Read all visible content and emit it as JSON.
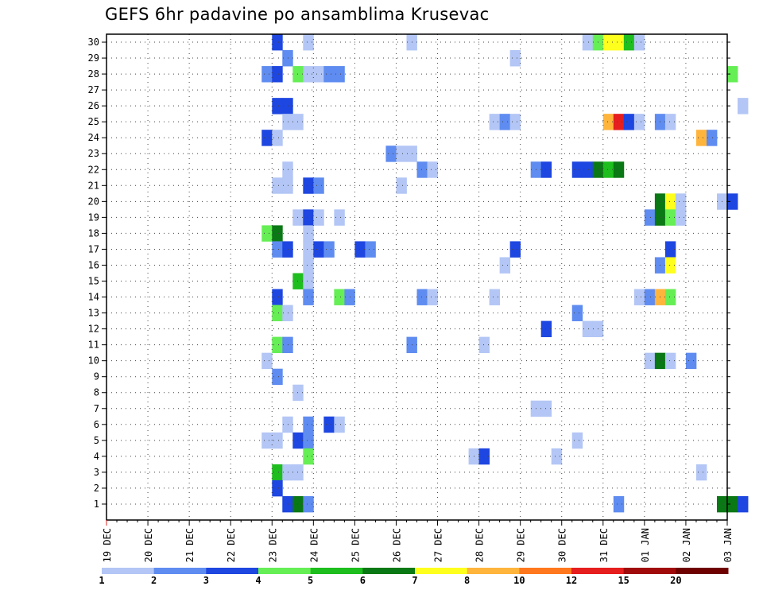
{
  "chart_data": {
    "type": "heatmap",
    "title": "GEFS 6hr padavine po ansamblima Krusevac",
    "xlabel": "",
    "ylabel": "",
    "x_tick_labels": [
      "19 DEC",
      "20 DEC",
      "21 DEC",
      "22 DEC",
      "23 DEC",
      "24 DEC",
      "25 DEC",
      "26 DEC",
      "27 DEC",
      "28 DEC",
      "29 DEC",
      "30 DEC",
      "31 DEC",
      "01 JAN",
      "02 JAN",
      "03 JAN"
    ],
    "y_tick_labels": [
      "1",
      "2",
      "3",
      "4",
      "5",
      "6",
      "7",
      "8",
      "9",
      "10",
      "11",
      "12",
      "13",
      "14",
      "15",
      "16",
      "17",
      "18",
      "19",
      "20",
      "21",
      "22",
      "23",
      "24",
      "25",
      "26",
      "27",
      "28",
      "29",
      "30"
    ],
    "time_steps_per_day": 4,
    "grid": true,
    "legend": {
      "placement": "bottom",
      "labels": [
        "1",
        "2",
        "3",
        "4",
        "5",
        "6",
        "7",
        "8",
        "10",
        "12",
        "15",
        "20"
      ],
      "colors": [
        "#b3c6f5",
        "#5f8cf0",
        "#1e46e0",
        "#66ee55",
        "#1ebe1e",
        "#0a7814",
        "#ffff1e",
        "#ffb43c",
        "#ff781e",
        "#e61e1e",
        "#a00a0a",
        "#6e0000"
      ]
    },
    "cells": [
      {
        "step": 16,
        "member": 30,
        "level": 2
      },
      {
        "step": 19,
        "member": 30,
        "level": 0
      },
      {
        "step": 29,
        "member": 30,
        "level": 0
      },
      {
        "step": 46,
        "member": 30,
        "level": 0
      },
      {
        "step": 47,
        "member": 30,
        "level": 3
      },
      {
        "step": 48,
        "member": 30,
        "level": 6
      },
      {
        "step": 49,
        "member": 30,
        "level": 6
      },
      {
        "step": 50,
        "member": 30,
        "level": 4
      },
      {
        "step": 51,
        "member": 30,
        "level": 0
      },
      {
        "step": 17,
        "member": 29,
        "level": 1
      },
      {
        "step": 39,
        "member": 29,
        "level": 0
      },
      {
        "step": 15,
        "member": 28,
        "level": 1
      },
      {
        "step": 16,
        "member": 28,
        "level": 2
      },
      {
        "step": 18,
        "member": 28,
        "level": 3
      },
      {
        "step": 19,
        "member": 28,
        "level": 0
      },
      {
        "step": 20,
        "member": 28,
        "level": 0
      },
      {
        "step": 21,
        "member": 28,
        "level": 1
      },
      {
        "step": 22,
        "member": 28,
        "level": 1
      },
      {
        "step": 60,
        "member": 28,
        "level": 3
      },
      {
        "step": 16,
        "member": 26,
        "level": 2
      },
      {
        "step": 17,
        "member": 26,
        "level": 2
      },
      {
        "step": 61,
        "member": 26,
        "level": 0
      },
      {
        "step": 17,
        "member": 25,
        "level": 0
      },
      {
        "step": 18,
        "member": 25,
        "level": 0
      },
      {
        "step": 37,
        "member": 25,
        "level": 0
      },
      {
        "step": 38,
        "member": 25,
        "level": 1
      },
      {
        "step": 39,
        "member": 25,
        "level": 0
      },
      {
        "step": 48,
        "member": 25,
        "level": 7
      },
      {
        "step": 49,
        "member": 25,
        "level": 9
      },
      {
        "step": 50,
        "member": 25,
        "level": 2
      },
      {
        "step": 51,
        "member": 25,
        "level": 0
      },
      {
        "step": 53,
        "member": 25,
        "level": 1
      },
      {
        "step": 54,
        "member": 25,
        "level": 0
      },
      {
        "step": 15,
        "member": 24,
        "level": 2
      },
      {
        "step": 16,
        "member": 24,
        "level": 0
      },
      {
        "step": 57,
        "member": 24,
        "level": 7
      },
      {
        "step": 58,
        "member": 24,
        "level": 1
      },
      {
        "step": 27,
        "member": 23,
        "level": 1
      },
      {
        "step": 28,
        "member": 23,
        "level": 0
      },
      {
        "step": 29,
        "member": 23,
        "level": 0
      },
      {
        "step": 17,
        "member": 22,
        "level": 0
      },
      {
        "step": 30,
        "member": 22,
        "level": 1
      },
      {
        "step": 31,
        "member": 22,
        "level": 0
      },
      {
        "step": 41,
        "member": 22,
        "level": 1
      },
      {
        "step": 42,
        "member": 22,
        "level": 2
      },
      {
        "step": 45,
        "member": 22,
        "level": 2
      },
      {
        "step": 46,
        "member": 22,
        "level": 2
      },
      {
        "step": 47,
        "member": 22,
        "level": 5
      },
      {
        "step": 48,
        "member": 22,
        "level": 4
      },
      {
        "step": 49,
        "member": 22,
        "level": 5
      },
      {
        "step": 16,
        "member": 21,
        "level": 0
      },
      {
        "step": 17,
        "member": 21,
        "level": 0
      },
      {
        "step": 19,
        "member": 21,
        "level": 2
      },
      {
        "step": 20,
        "member": 21,
        "level": 1
      },
      {
        "step": 28,
        "member": 21,
        "level": 0
      },
      {
        "step": 53,
        "member": 20,
        "level": 5
      },
      {
        "step": 54,
        "member": 20,
        "level": 6
      },
      {
        "step": 55,
        "member": 20,
        "level": 0
      },
      {
        "step": 59,
        "member": 20,
        "level": 0
      },
      {
        "step": 60,
        "member": 20,
        "level": 2
      },
      {
        "step": 18,
        "member": 19,
        "level": 0
      },
      {
        "step": 19,
        "member": 19,
        "level": 2
      },
      {
        "step": 20,
        "member": 19,
        "level": 0
      },
      {
        "step": 22,
        "member": 19,
        "level": 0
      },
      {
        "step": 52,
        "member": 19,
        "level": 1
      },
      {
        "step": 53,
        "member": 19,
        "level": 5
      },
      {
        "step": 54,
        "member": 19,
        "level": 3
      },
      {
        "step": 55,
        "member": 19,
        "level": 0
      },
      {
        "step": 15,
        "member": 18,
        "level": 3
      },
      {
        "step": 16,
        "member": 18,
        "level": 5
      },
      {
        "step": 19,
        "member": 18,
        "level": 0
      },
      {
        "step": 16,
        "member": 17,
        "level": 1
      },
      {
        "step": 17,
        "member": 17,
        "level": 2
      },
      {
        "step": 19,
        "member": 17,
        "level": 0
      },
      {
        "step": 20,
        "member": 17,
        "level": 2
      },
      {
        "step": 21,
        "member": 17,
        "level": 1
      },
      {
        "step": 24,
        "member": 17,
        "level": 2
      },
      {
        "step": 25,
        "member": 17,
        "level": 1
      },
      {
        "step": 39,
        "member": 17,
        "level": 2
      },
      {
        "step": 54,
        "member": 17,
        "level": 2
      },
      {
        "step": 19,
        "member": 16,
        "level": 0
      },
      {
        "step": 38,
        "member": 16,
        "level": 0
      },
      {
        "step": 53,
        "member": 16,
        "level": 1
      },
      {
        "step": 54,
        "member": 16,
        "level": 6
      },
      {
        "step": 18,
        "member": 15,
        "level": 4
      },
      {
        "step": 19,
        "member": 15,
        "level": 0
      },
      {
        "step": 16,
        "member": 14,
        "level": 2
      },
      {
        "step": 19,
        "member": 14,
        "level": 1
      },
      {
        "step": 22,
        "member": 14,
        "level": 3
      },
      {
        "step": 23,
        "member": 14,
        "level": 1
      },
      {
        "step": 30,
        "member": 14,
        "level": 1
      },
      {
        "step": 31,
        "member": 14,
        "level": 0
      },
      {
        "step": 37,
        "member": 14,
        "level": 0
      },
      {
        "step": 51,
        "member": 14,
        "level": 0
      },
      {
        "step": 52,
        "member": 14,
        "level": 1
      },
      {
        "step": 53,
        "member": 14,
        "level": 7
      },
      {
        "step": 54,
        "member": 14,
        "level": 3
      },
      {
        "step": 16,
        "member": 13,
        "level": 3
      },
      {
        "step": 17,
        "member": 13,
        "level": 0
      },
      {
        "step": 45,
        "member": 13,
        "level": 1
      },
      {
        "step": 42,
        "member": 12,
        "level": 2
      },
      {
        "step": 46,
        "member": 12,
        "level": 0
      },
      {
        "step": 47,
        "member": 12,
        "level": 0
      },
      {
        "step": 16,
        "member": 11,
        "level": 3
      },
      {
        "step": 17,
        "member": 11,
        "level": 1
      },
      {
        "step": 29,
        "member": 11,
        "level": 1
      },
      {
        "step": 36,
        "member": 11,
        "level": 0
      },
      {
        "step": 15,
        "member": 10,
        "level": 0
      },
      {
        "step": 52,
        "member": 10,
        "level": 0
      },
      {
        "step": 53,
        "member": 10,
        "level": 5
      },
      {
        "step": 54,
        "member": 10,
        "level": 0
      },
      {
        "step": 56,
        "member": 10,
        "level": 1
      },
      {
        "step": 16,
        "member": 9,
        "level": 1
      },
      {
        "step": 18,
        "member": 8,
        "level": 0
      },
      {
        "step": 41,
        "member": 7,
        "level": 0
      },
      {
        "step": 42,
        "member": 7,
        "level": 0
      },
      {
        "step": 17,
        "member": 6,
        "level": 0
      },
      {
        "step": 19,
        "member": 6,
        "level": 1
      },
      {
        "step": 21,
        "member": 6,
        "level": 2
      },
      {
        "step": 22,
        "member": 6,
        "level": 0
      },
      {
        "step": 15,
        "member": 5,
        "level": 0
      },
      {
        "step": 16,
        "member": 5,
        "level": 0
      },
      {
        "step": 18,
        "member": 5,
        "level": 2
      },
      {
        "step": 19,
        "member": 5,
        "level": 1
      },
      {
        "step": 45,
        "member": 5,
        "level": 0
      },
      {
        "step": 19,
        "member": 4,
        "level": 3
      },
      {
        "step": 35,
        "member": 4,
        "level": 0
      },
      {
        "step": 36,
        "member": 4,
        "level": 2
      },
      {
        "step": 43,
        "member": 4,
        "level": 0
      },
      {
        "step": 16,
        "member": 3,
        "level": 4
      },
      {
        "step": 17,
        "member": 3,
        "level": 0
      },
      {
        "step": 18,
        "member": 3,
        "level": 0
      },
      {
        "step": 57,
        "member": 3,
        "level": 0
      },
      {
        "step": 16,
        "member": 2,
        "level": 2
      },
      {
        "step": 17,
        "member": 1,
        "level": 2
      },
      {
        "step": 18,
        "member": 1,
        "level": 5
      },
      {
        "step": 19,
        "member": 1,
        "level": 1
      },
      {
        "step": 49,
        "member": 1,
        "level": 1
      },
      {
        "step": 59,
        "member": 1,
        "level": 5
      },
      {
        "step": 60,
        "member": 1,
        "level": 5
      },
      {
        "step": 61,
        "member": 1,
        "level": 2
      }
    ]
  }
}
